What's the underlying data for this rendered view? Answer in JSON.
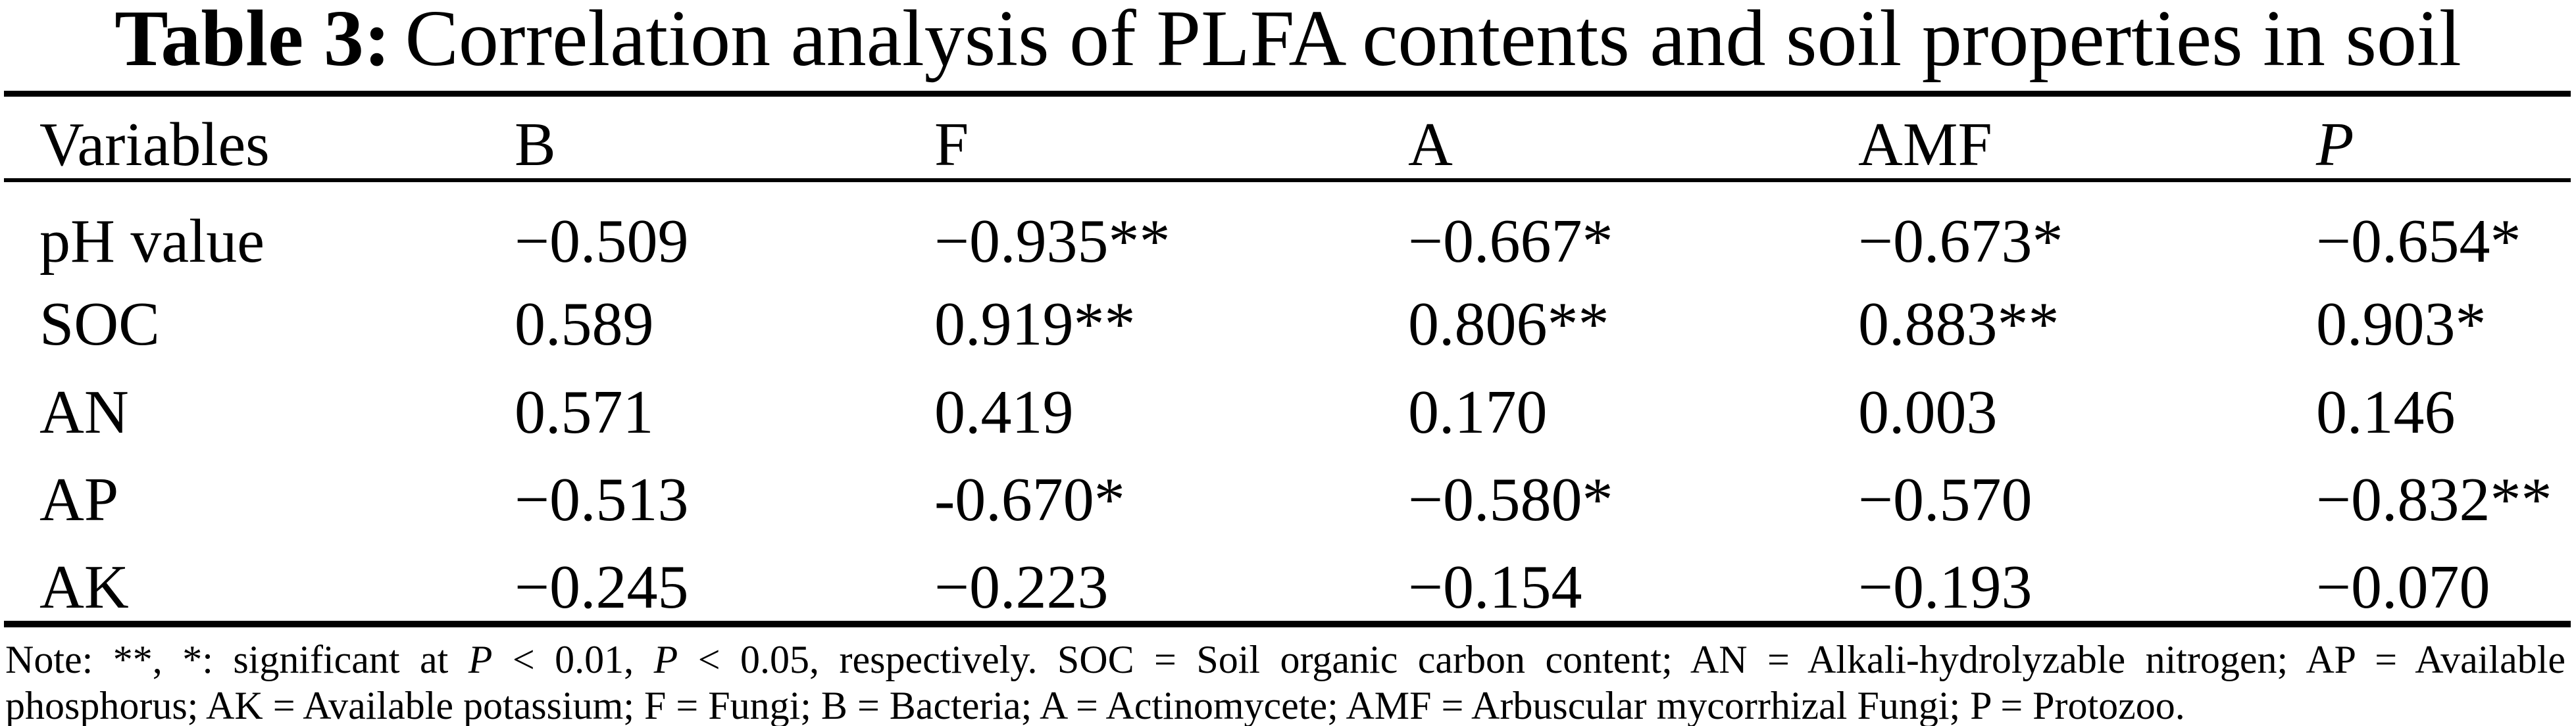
{
  "colors": {
    "background": "#ffffff",
    "text": "#000000"
  },
  "caption": {
    "label": "Table 3:",
    "title": "Correlation analysis of PLFA contents and soil properties in soil"
  },
  "table": {
    "columns": [
      "Variables",
      "B",
      "F",
      "A",
      "AMF",
      "P"
    ],
    "rows": [
      {
        "label": "pH value",
        "values": [
          "−0.509",
          "−0.935**",
          "−0.667*",
          "−0.673*",
          "−0.654*"
        ]
      },
      {
        "label": "SOC",
        "values": [
          "0.589",
          "0.919**",
          "0.806**",
          "0.883**",
          "0.903*"
        ]
      },
      {
        "label": "AN",
        "values": [
          "0.571",
          "0.419",
          "0.170",
          "0.003",
          "0.146"
        ]
      },
      {
        "label": "AP",
        "values": [
          "−0.513",
          "-0.670*",
          "−0.580*",
          "−0.570",
          "−0.832**"
        ]
      },
      {
        "label": "AK",
        "values": [
          "−0.245",
          "−0.223",
          "−0.154",
          "−0.193",
          "−0.070"
        ]
      }
    ]
  },
  "note": {
    "line1": {
      "seg1": "Note: **, *: significant at ",
      "p1": "P",
      "seg2": " < 0.01, ",
      "p2": "P",
      "seg3": " < 0.05, respectively. SOC = Soil organic carbon content; AN = Alkali-hydrolyzable nitrogen; AP = Available"
    },
    "line2": "phosphorus; AK = Available potassium; F = Fungi; B = Bacteria; A = Actinomycete; AMF = Arbuscular mycorrhizal Fungi; P = Protozoo."
  }
}
